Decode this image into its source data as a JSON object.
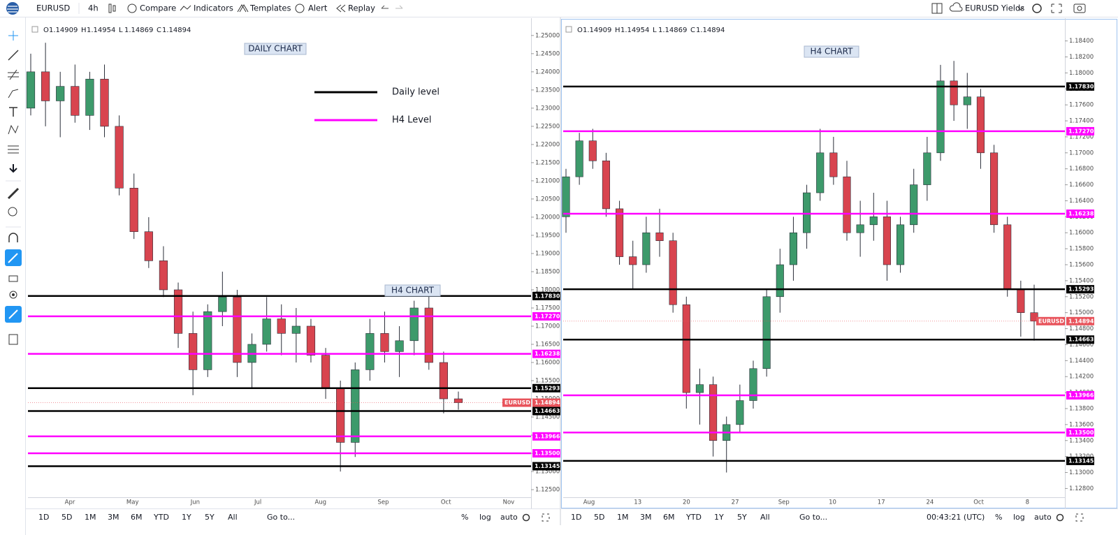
{
  "toolbar": {
    "symbol": "EURUSD",
    "interval": "4h",
    "buttons": [
      "Compare",
      "Indicators",
      "Templates",
      "Alert",
      "Replay"
    ],
    "layout_name": "EURUSD Yields"
  },
  "chart_data": [
    {
      "type": "candlestick",
      "ohlc": [
        {
          "label": "O",
          "value": 1.14909
        },
        {
          "label": "H",
          "value": 1.14954
        },
        {
          "label": "L",
          "value": 1.14869
        },
        {
          "label": "C",
          "value": 1.14894
        }
      ],
      "annotations": [
        "DAILY CHART",
        "H4 CHART"
      ],
      "legend": [
        {
          "name": "Daily level",
          "color": "#000000"
        },
        {
          "name": "H4 Level",
          "color": "#ff00ff"
        }
      ],
      "ylim": [
        1.1229,
        1.254
      ],
      "yticks": [
        {
          "value": 1.125,
          "label": "1.12500"
        },
        {
          "value": 1.13,
          "label": "1.13000"
        },
        {
          "value": 1.135,
          "label": "1.13500"
        },
        {
          "value": 1.14,
          "label": "1.14000"
        },
        {
          "value": 1.145,
          "label": "1.14500"
        },
        {
          "value": 1.15,
          "label": "1.15000"
        },
        {
          "value": 1.155,
          "label": "1.15500"
        },
        {
          "value": 1.16,
          "label": "1.16000"
        },
        {
          "value": 1.165,
          "label": "1.16500"
        },
        {
          "value": 1.17,
          "label": "1.17000"
        },
        {
          "value": 1.175,
          "label": "1.17500"
        },
        {
          "value": 1.18,
          "label": "1.18000"
        },
        {
          "value": 1.185,
          "label": "1.18500"
        },
        {
          "value": 1.19,
          "label": "1.19000"
        },
        {
          "value": 1.195,
          "label": "1.19500"
        },
        {
          "value": 1.2,
          "label": "1.20000"
        },
        {
          "value": 1.205,
          "label": "1.20500"
        },
        {
          "value": 1.21,
          "label": "1.21000"
        },
        {
          "value": 1.215,
          "label": "1.21500"
        },
        {
          "value": 1.22,
          "label": "1.22000"
        },
        {
          "value": 1.225,
          "label": "1.22500"
        },
        {
          "value": 1.23,
          "label": "1.23000"
        },
        {
          "value": 1.235,
          "label": "1.23500"
        },
        {
          "value": 1.24,
          "label": "1.24000"
        },
        {
          "value": 1.245,
          "label": "1.24500"
        },
        {
          "value": 1.25,
          "label": "1.25000"
        }
      ],
      "x_labels": [
        "Apr",
        "May",
        "Jun",
        "Jul",
        "Aug",
        "Sep",
        "Oct",
        "Nov"
      ],
      "up_color": "#3d9a6b",
      "down_color": "#d8444f",
      "candles": {
        "open": [
          1.23,
          1.24,
          1.232,
          1.236,
          1.228,
          1.238,
          1.225,
          1.208,
          1.196,
          1.188,
          1.18,
          1.168,
          1.158,
          1.174,
          1.178,
          1.16,
          1.165,
          1.172,
          1.168,
          1.17,
          1.162,
          1.153,
          1.138,
          1.158,
          1.168,
          1.163,
          1.166,
          1.175,
          1.16,
          1.15
        ],
        "high": [
          1.245,
          1.248,
          1.24,
          1.242,
          1.24,
          1.242,
          1.228,
          1.212,
          1.2,
          1.192,
          1.182,
          1.174,
          1.176,
          1.185,
          1.18,
          1.168,
          1.178,
          1.176,
          1.175,
          1.172,
          1.164,
          1.155,
          1.16,
          1.172,
          1.174,
          1.17,
          1.177,
          1.181,
          1.163,
          1.152
        ],
        "low": [
          1.228,
          1.225,
          1.222,
          1.226,
          1.224,
          1.222,
          1.206,
          1.194,
          1.186,
          1.178,
          1.164,
          1.151,
          1.156,
          1.17,
          1.156,
          1.153,
          1.163,
          1.162,
          1.16,
          1.16,
          1.15,
          1.13,
          1.134,
          1.155,
          1.16,
          1.156,
          1.162,
          1.158,
          1.146,
          1.147
        ],
        "close": [
          1.24,
          1.232,
          1.236,
          1.228,
          1.238,
          1.225,
          1.208,
          1.196,
          1.188,
          1.18,
          1.168,
          1.158,
          1.174,
          1.178,
          1.16,
          1.165,
          1.172,
          1.168,
          1.17,
          1.162,
          1.153,
          1.138,
          1.158,
          1.168,
          1.163,
          1.166,
          1.175,
          1.16,
          1.15,
          1.14894
        ]
      },
      "levels": [
        {
          "value": 1.1783,
          "label": "1.17830",
          "color": "#000000"
        },
        {
          "value": 1.1727,
          "label": "1.17270",
          "color": "#ff00ff"
        },
        {
          "value": 1.16238,
          "label": "1.16238",
          "color": "#ff00ff"
        },
        {
          "value": 1.15293,
          "label": "1.15293",
          "color": "#000000"
        },
        {
          "value": 1.14663,
          "label": "1.14663",
          "color": "#000000"
        },
        {
          "value": 1.13966,
          "label": "1.13966",
          "color": "#ff00ff"
        },
        {
          "value": 1.135,
          "label": "1.13500",
          "color": "#ff00ff"
        },
        {
          "value": 1.13145,
          "label": "1.13145",
          "color": "#000000"
        }
      ],
      "last": {
        "symbol": "EURUSD",
        "price": 1.14894,
        "color": "#e8535b"
      }
    },
    {
      "type": "candlestick",
      "ohlc": [
        {
          "label": "O",
          "value": 1.14909
        },
        {
          "label": "H",
          "value": 1.14954
        },
        {
          "label": "L",
          "value": 1.14869
        },
        {
          "label": "C",
          "value": 1.14894
        }
      ],
      "annotations": [
        "H4 CHART"
      ],
      "ylim": [
        1.1269,
        1.1865
      ],
      "yticks": [
        {
          "value": 1.128,
          "label": "1.12800"
        },
        {
          "value": 1.13,
          "label": "1.13000"
        },
        {
          "value": 1.132,
          "label": "1.13200"
        },
        {
          "value": 1.134,
          "label": "1.13400"
        },
        {
          "value": 1.136,
          "label": "1.13600"
        },
        {
          "value": 1.138,
          "label": "1.13800"
        },
        {
          "value": 1.14,
          "label": "1.14000"
        },
        {
          "value": 1.142,
          "label": "1.14200"
        },
        {
          "value": 1.144,
          "label": "1.14400"
        },
        {
          "value": 1.146,
          "label": "1.14600"
        },
        {
          "value": 1.148,
          "label": "1.14800"
        },
        {
          "value": 1.15,
          "label": "1.15000"
        },
        {
          "value": 1.152,
          "label": "1.15200"
        },
        {
          "value": 1.154,
          "label": "1.15400"
        },
        {
          "value": 1.156,
          "label": "1.15600"
        },
        {
          "value": 1.158,
          "label": "1.15800"
        },
        {
          "value": 1.16,
          "label": "1.16000"
        },
        {
          "value": 1.162,
          "label": "1.16200"
        },
        {
          "value": 1.164,
          "label": "1.16400"
        },
        {
          "value": 1.166,
          "label": "1.16600"
        },
        {
          "value": 1.168,
          "label": "1.16800"
        },
        {
          "value": 1.17,
          "label": "1.17000"
        },
        {
          "value": 1.172,
          "label": "1.17200"
        },
        {
          "value": 1.174,
          "label": "1.17400"
        },
        {
          "value": 1.176,
          "label": "1.17600"
        },
        {
          "value": 1.178,
          "label": "1.17800"
        },
        {
          "value": 1.18,
          "label": "1.18000"
        },
        {
          "value": 1.182,
          "label": "1.18200"
        },
        {
          "value": 1.184,
          "label": "1.18400"
        }
      ],
      "x_labels": [
        "Aug",
        "13",
        "20",
        "27",
        "Sep",
        "10",
        "17",
        "24",
        "Oct",
        "8"
      ],
      "up_color": "#3d9a6b",
      "down_color": "#d8444f",
      "candles": {
        "open": [
          1.162,
          1.167,
          1.1715,
          1.169,
          1.163,
          1.157,
          1.156,
          1.16,
          1.159,
          1.151,
          1.14,
          1.141,
          1.134,
          1.136,
          1.139,
          1.143,
          1.152,
          1.156,
          1.16,
          1.165,
          1.17,
          1.167,
          1.16,
          1.161,
          1.162,
          1.156,
          1.161,
          1.166,
          1.17,
          1.179,
          1.176,
          1.177,
          1.17,
          1.161,
          1.153,
          1.15
        ],
        "high": [
          1.168,
          1.1725,
          1.173,
          1.17,
          1.164,
          1.159,
          1.162,
          1.163,
          1.16,
          1.152,
          1.143,
          1.142,
          1.137,
          1.141,
          1.144,
          1.153,
          1.158,
          1.162,
          1.166,
          1.173,
          1.172,
          1.169,
          1.164,
          1.165,
          1.164,
          1.162,
          1.168,
          1.172,
          1.181,
          1.1815,
          1.18,
          1.178,
          1.171,
          1.162,
          1.154,
          1.1535
        ],
        "low": [
          1.16,
          1.166,
          1.168,
          1.162,
          1.156,
          1.153,
          1.155,
          1.157,
          1.15,
          1.138,
          1.136,
          1.132,
          1.13,
          1.135,
          1.138,
          1.142,
          1.15,
          1.154,
          1.158,
          1.164,
          1.166,
          1.159,
          1.157,
          1.159,
          1.154,
          1.155,
          1.16,
          1.164,
          1.169,
          1.174,
          1.173,
          1.168,
          1.16,
          1.152,
          1.147,
          1.1465
        ],
        "close": [
          1.167,
          1.1715,
          1.169,
          1.163,
          1.157,
          1.156,
          1.16,
          1.159,
          1.151,
          1.14,
          1.141,
          1.134,
          1.136,
          1.139,
          1.143,
          1.152,
          1.156,
          1.16,
          1.165,
          1.17,
          1.167,
          1.16,
          1.161,
          1.162,
          1.156,
          1.161,
          1.166,
          1.17,
          1.179,
          1.176,
          1.177,
          1.17,
          1.161,
          1.153,
          1.15,
          1.14894
        ]
      },
      "levels": [
        {
          "value": 1.1783,
          "label": "1.17830",
          "color": "#000000"
        },
        {
          "value": 1.1727,
          "label": "1.17270",
          "color": "#ff00ff"
        },
        {
          "value": 1.16238,
          "label": "1.16238",
          "color": "#ff00ff"
        },
        {
          "value": 1.15293,
          "label": "1.15293",
          "color": "#000000"
        },
        {
          "value": 1.14663,
          "label": "1.14663",
          "color": "#000000"
        },
        {
          "value": 1.13966,
          "label": "1.13966",
          "color": "#ff00ff"
        },
        {
          "value": 1.135,
          "label": "1.13500",
          "color": "#ff00ff"
        },
        {
          "value": 1.13145,
          "label": "1.13145",
          "color": "#000000"
        }
      ],
      "last": {
        "symbol": "EURUSD",
        "price": 1.14894,
        "color": "#e8535b"
      }
    }
  ],
  "bottom_bar": {
    "ranges": [
      "1D",
      "5D",
      "1M",
      "3M",
      "6M",
      "YTD",
      "1Y",
      "5Y",
      "All"
    ],
    "goto": "Go to...",
    "percent": "%",
    "log": "log",
    "auto": "auto",
    "clock": "00:43:21 (UTC)"
  }
}
